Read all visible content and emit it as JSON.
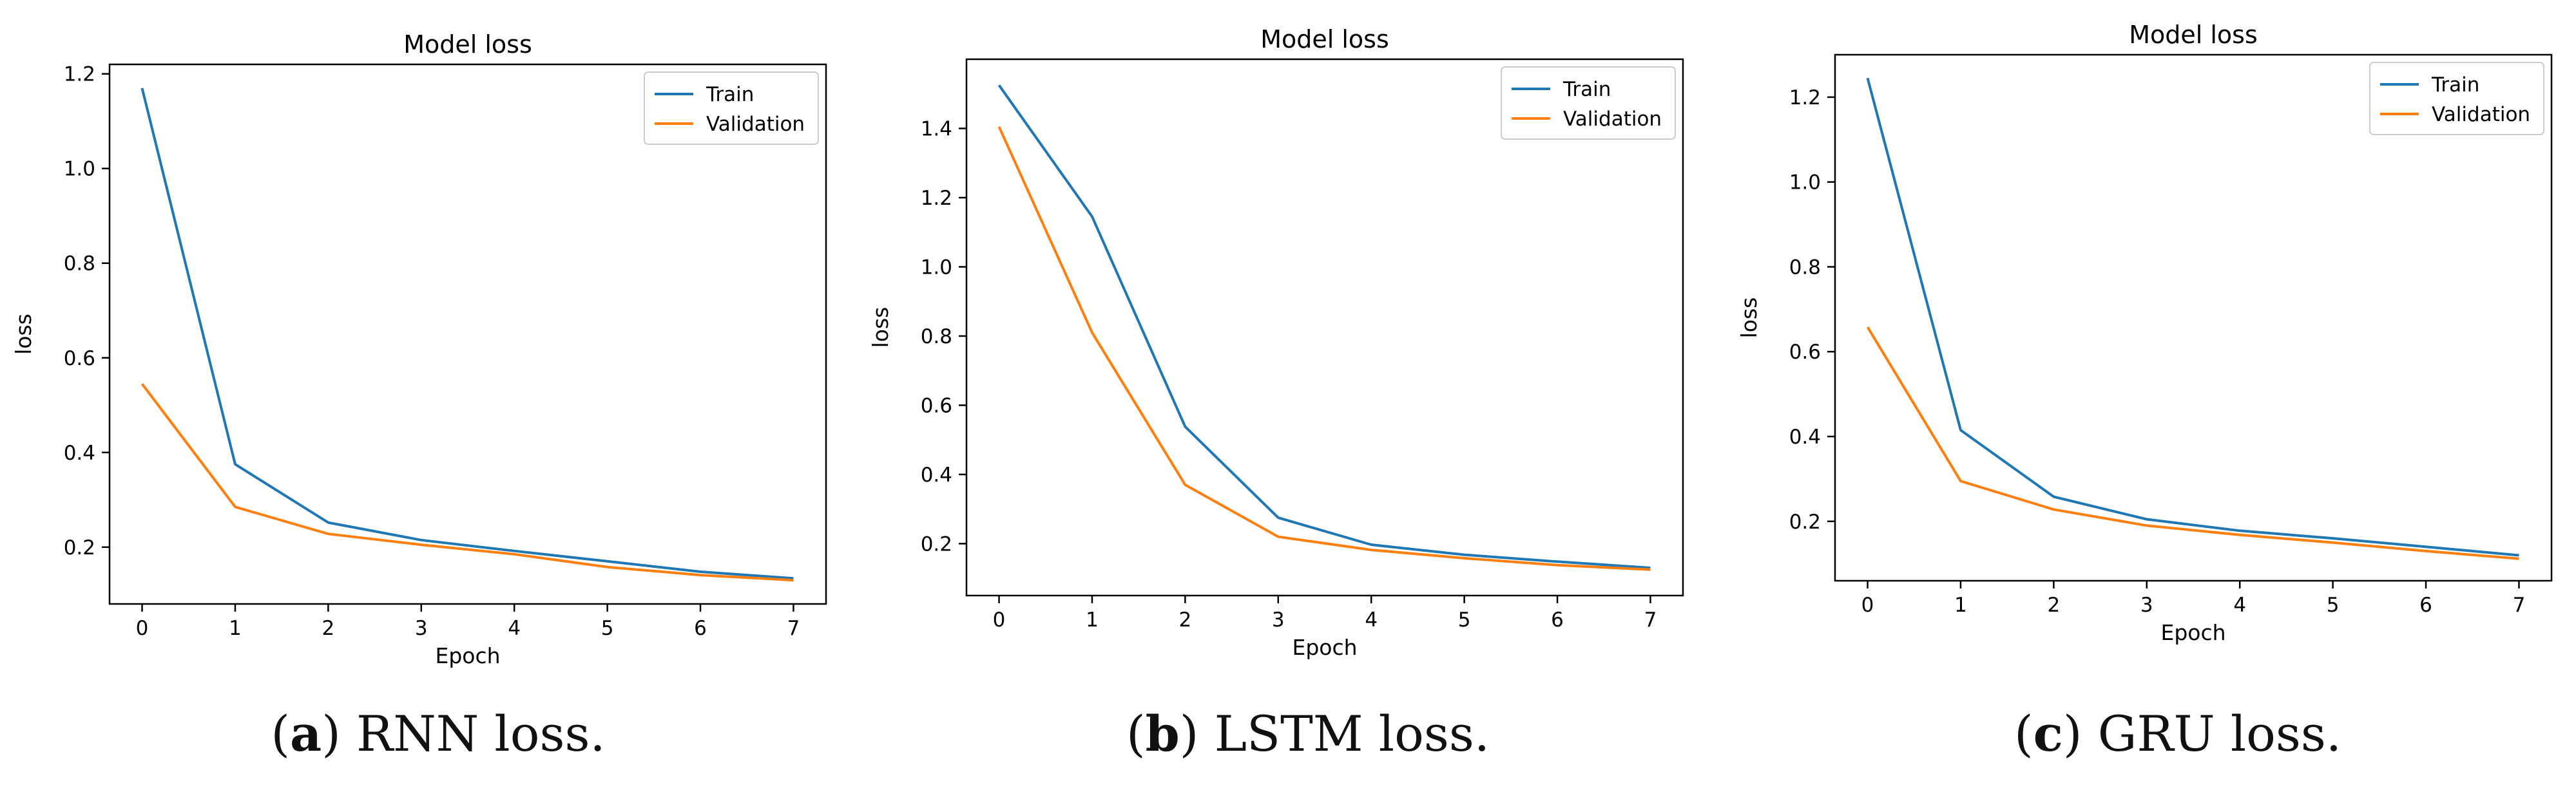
{
  "colors": {
    "train": "#1f77b4",
    "validation": "#ff7f0e",
    "axis": "#000000",
    "background": "#ffffff"
  },
  "chart_data": [
    {
      "type": "line",
      "title": "Model loss",
      "xlabel": "Epoch",
      "ylabel": "loss",
      "x": [
        0,
        1,
        2,
        3,
        4,
        5,
        6,
        7
      ],
      "xticks": [
        "0",
        "1",
        "2",
        "3",
        "4",
        "5",
        "6",
        "7"
      ],
      "yticks": [
        0.2,
        0.4,
        0.6,
        0.8,
        1.0,
        1.2
      ],
      "ytick_labels": [
        "0.2",
        "0.4",
        "0.6",
        "0.8",
        "1.0",
        "1.2"
      ],
      "xlim": [
        -0.35,
        7.35
      ],
      "ylim": [
        0.08,
        1.22
      ],
      "legend_position": "top-right",
      "series": [
        {
          "name": "Train",
          "values": [
            1.17,
            0.375,
            0.252,
            0.215,
            0.192,
            0.17,
            0.148,
            0.134
          ]
        },
        {
          "name": "Validation",
          "values": [
            0.545,
            0.285,
            0.228,
            0.205,
            0.185,
            0.158,
            0.141,
            0.13
          ]
        }
      ]
    },
    {
      "type": "line",
      "title": "Model loss",
      "xlabel": "Epoch",
      "ylabel": "loss",
      "x": [
        0,
        1,
        2,
        3,
        4,
        5,
        6,
        7
      ],
      "xticks": [
        "0",
        "1",
        "2",
        "3",
        "4",
        "5",
        "6",
        "7"
      ],
      "yticks": [
        0.2,
        0.4,
        0.6,
        0.8,
        1.0,
        1.2,
        1.4
      ],
      "ytick_labels": [
        "0.2",
        "0.4",
        "0.6",
        "0.8",
        "1.0",
        "1.2",
        "1.4"
      ],
      "xlim": [
        -0.35,
        7.35
      ],
      "ylim": [
        0.05,
        1.6
      ],
      "legend_position": "top-right",
      "series": [
        {
          "name": "Train",
          "values": [
            1.525,
            1.145,
            0.538,
            0.275,
            0.197,
            0.168,
            0.148,
            0.13
          ]
        },
        {
          "name": "Validation",
          "values": [
            1.405,
            0.81,
            0.37,
            0.22,
            0.182,
            0.158,
            0.138,
            0.125
          ]
        }
      ]
    },
    {
      "type": "line",
      "title": "Model loss",
      "xlabel": "Epoch",
      "ylabel": "loss",
      "x": [
        0,
        1,
        2,
        3,
        4,
        5,
        6,
        7
      ],
      "xticks": [
        "0",
        "1",
        "2",
        "3",
        "4",
        "5",
        "6",
        "7"
      ],
      "yticks": [
        0.2,
        0.4,
        0.6,
        0.8,
        1.0,
        1.2
      ],
      "ytick_labels": [
        "0.2",
        "0.4",
        "0.6",
        "0.8",
        "1.0",
        "1.2"
      ],
      "xlim": [
        -0.35,
        7.35
      ],
      "ylim": [
        0.06,
        1.3
      ],
      "legend_position": "top-right",
      "series": [
        {
          "name": "Train",
          "values": [
            1.245,
            0.415,
            0.258,
            0.205,
            0.178,
            0.16,
            0.14,
            0.12
          ]
        },
        {
          "name": "Validation",
          "values": [
            0.658,
            0.295,
            0.228,
            0.19,
            0.168,
            0.15,
            0.13,
            0.112
          ]
        }
      ]
    }
  ],
  "captions": [
    {
      "label": "a",
      "text": "RNN loss."
    },
    {
      "label": "b",
      "text": "LSTM loss."
    },
    {
      "label": "c",
      "text": "GRU loss."
    }
  ]
}
